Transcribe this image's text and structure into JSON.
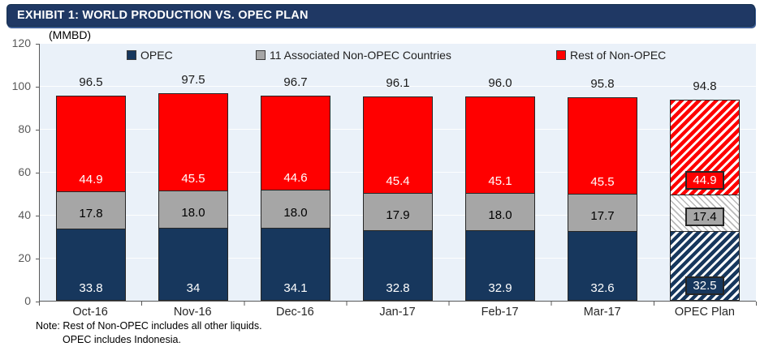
{
  "header": {
    "title": "EXHIBIT 1: WORLD PRODUCTION VS. OPEC PLAN"
  },
  "chart_data": {
    "type": "bar",
    "stacked": true,
    "title": "EXHIBIT 1: WORLD PRODUCTION VS. OPEC PLAN",
    "units_label": "(MMBD)",
    "categories": [
      "Oct-16",
      "Nov-16",
      "Dec-16",
      "Jan-17",
      "Feb-17",
      "Mar-17",
      "OPEC Plan"
    ],
    "totals": [
      "96.5",
      "97.5",
      "96.7",
      "96.1",
      "96.0",
      "95.8",
      "94.8"
    ],
    "series": [
      {
        "name": "OPEC",
        "color": "#17375D",
        "values": [
          "33.8",
          "34",
          "34.1",
          "32.8",
          "32.9",
          "32.6",
          "32.5"
        ]
      },
      {
        "name": "11 Associated Non-OPEC Countries",
        "color": "#A6A6A6",
        "values": [
          "17.8",
          "18.0",
          "18.0",
          "17.9",
          "18.0",
          "17.7",
          "17.4"
        ]
      },
      {
        "name": "Rest of Non-OPEC",
        "color": "#FF0000",
        "values": [
          "44.9",
          "45.5",
          "44.6",
          "45.4",
          "45.1",
          "45.5",
          "44.9"
        ]
      }
    ],
    "y_ticks": [
      "120",
      "100",
      "80",
      "60",
      "40",
      "20",
      "0"
    ],
    "ylim": [
      0,
      120
    ],
    "grid": true,
    "legend_position": "top",
    "plan_category": "OPEC Plan",
    "plan_style": "diagonal-hatch"
  },
  "note": {
    "line1": "Note: Rest of Non-OPEC includes all other liquids.",
    "line2": "OPEC includes Indonesia."
  },
  "colors": {
    "title_bar_bg": "#1F3864",
    "plot_bg": "#EAF1F9",
    "opec": "#17375D",
    "associated": "#A6A6A6",
    "rest": "#FF0000",
    "axis": "#595959"
  }
}
